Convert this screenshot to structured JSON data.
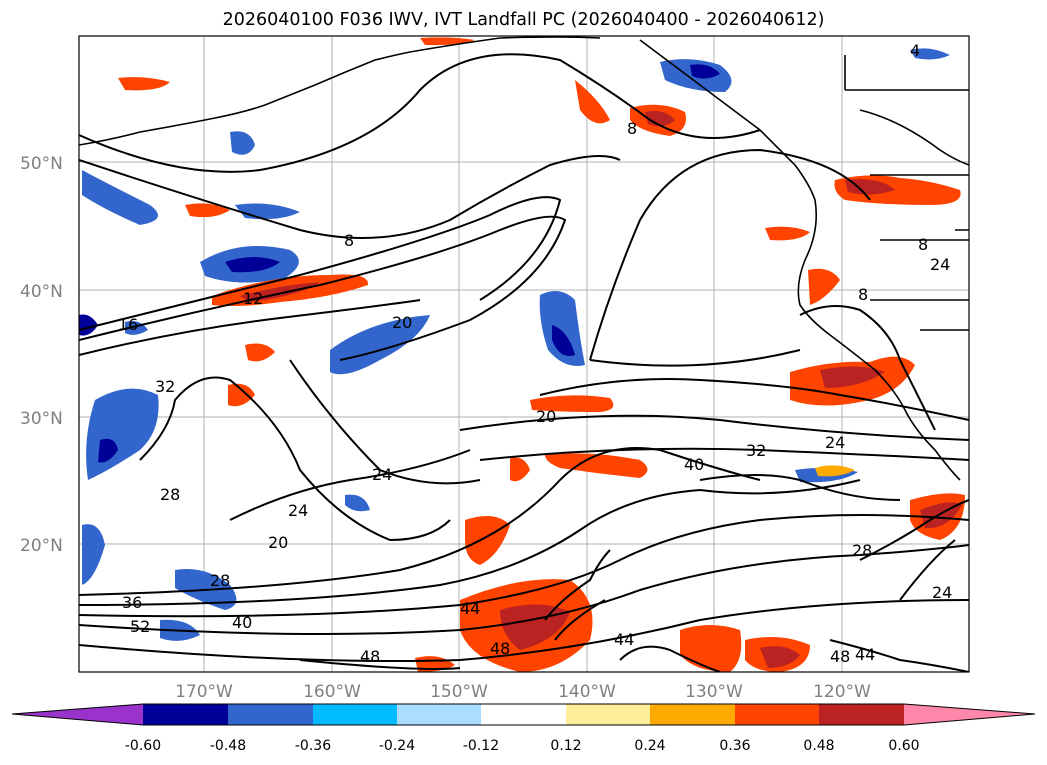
{
  "title": "2026040100 F036 IWV, IVT Landfall PC (2026040400 - 2026040612)",
  "lat_labels": [
    "50°N",
    "40°N",
    "30°N",
    "20°N"
  ],
  "lon_labels": [
    "170°W",
    "160°W",
    "150°W",
    "140°W",
    "130°W",
    "120°W"
  ],
  "contour_labels": [
    "8",
    "8",
    "8",
    "12",
    "16",
    "20",
    "20",
    "20",
    "24",
    "24",
    "24",
    "24",
    "28",
    "28",
    "28",
    "32",
    "32",
    "36",
    "40",
    "40",
    "44",
    "44",
    "48",
    "48",
    "52",
    "48",
    "44",
    "24",
    "8",
    "4"
  ],
  "colorbar": {
    "ticks": [
      "-0.60",
      "-0.48",
      "-0.36",
      "-0.24",
      "-0.12",
      "0.12",
      "0.24",
      "0.36",
      "0.48",
      "0.60"
    ],
    "colors": [
      "#9933cc",
      "#000099",
      "#3366cc",
      "#00bbff",
      "#aaddff",
      "#ffffff",
      "#ffee99",
      "#ffaa00",
      "#ff4400",
      "#bb2222",
      "#ff88aa"
    ]
  }
}
